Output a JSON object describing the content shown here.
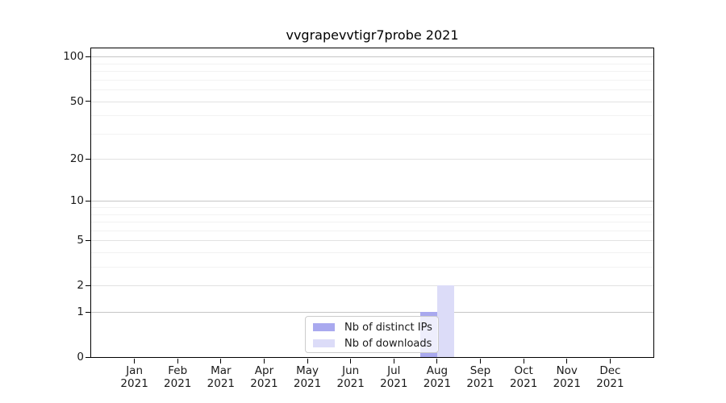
{
  "chart_data": {
    "type": "bar",
    "title": "vvgrapevvtigr7probe 2021",
    "categories": [
      "Jan 2021",
      "Feb 2021",
      "Mar 2021",
      "Apr 2021",
      "May 2021",
      "Jun 2021",
      "Jul 2021",
      "Aug 2021",
      "Sep 2021",
      "Oct 2021",
      "Nov 2021",
      "Dec 2021"
    ],
    "series": [
      {
        "name": "Nb of distinct IPs",
        "color": "#a9a9ef",
        "values": [
          0,
          0,
          0,
          0,
          0,
          0,
          0,
          1,
          0,
          0,
          0,
          0
        ]
      },
      {
        "name": "Nb of downloads",
        "color": "#dcdcf8",
        "values": [
          0,
          0,
          0,
          0,
          0,
          0,
          0,
          2,
          0,
          0,
          0,
          0
        ]
      }
    ],
    "xlabel": "",
    "ylabel": "",
    "yscale": "log1p",
    "ylim": [
      0,
      114
    ],
    "y_ticks_labeled": [
      0,
      1,
      2,
      5,
      10,
      20,
      50,
      100
    ],
    "y_ticks_minor": [
      3,
      4,
      6,
      7,
      8,
      9,
      30,
      40,
      60,
      70,
      80,
      90
    ],
    "grid": true,
    "legend_position": "lower center"
  },
  "colors": {
    "background": "#ffffff",
    "axis": "#000000",
    "grid_decade": "#c6c6c6",
    "grid_labeled": "#e2e2e2",
    "grid_minor": "#f2f2f2",
    "text": "#1a1a1a",
    "legend_border": "#cccccc",
    "legend_bg": "rgba(255,255,255,0.8)"
  }
}
